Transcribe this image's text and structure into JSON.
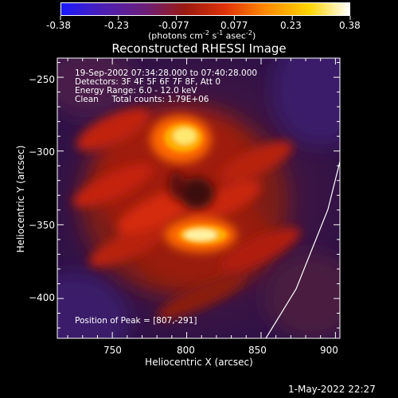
{
  "colorbar": {
    "ticks": [
      "-0.38",
      "-0.23",
      "-0.077",
      "0.077",
      "0.23",
      "0.38"
    ],
    "units_main": "(photons cm",
    "units_sup1": "-2",
    "units_mid1": " s",
    "units_sup2": "-1",
    "units_mid2": " asec",
    "units_sup3": "-2",
    "units_end": ")",
    "colors": [
      "#1a1aff",
      "#4b1fb5",
      "#6b1f7a",
      "#9a1a10",
      "#e0320a",
      "#ff8a00",
      "#ffd400",
      "#ffffff"
    ]
  },
  "plot": {
    "title": "Reconstructed RHESSI Image",
    "info_lines": [
      "19-Sep-2002 07:34:28.000 to 07:40:28.000",
      "Detectors: 3F 4F 5F 6F 7F 8F, Att 0",
      "Energy Range: 6.0 - 12.0 keV",
      "Clean     Total counts: 1.79E+06"
    ],
    "peak_label": "Position of Peak = [807,-291]",
    "x_label": "Heliocentric X (arcsec)",
    "y_label": "Heliocentric Y (arcsec)",
    "x_ticks": [
      {
        "value": 750,
        "label": "750"
      },
      {
        "value": 800,
        "label": "800"
      },
      {
        "value": 850,
        "label": "850"
      },
      {
        "value": 900,
        "label": "900"
      }
    ],
    "y_ticks": [
      {
        "value": -250,
        "label": "−250"
      },
      {
        "value": -300,
        "label": "−300"
      },
      {
        "value": -350,
        "label": "−350"
      },
      {
        "value": -400,
        "label": "−400"
      }
    ]
  },
  "footer": {
    "timestamp": "1-May-2022 22:27"
  }
}
